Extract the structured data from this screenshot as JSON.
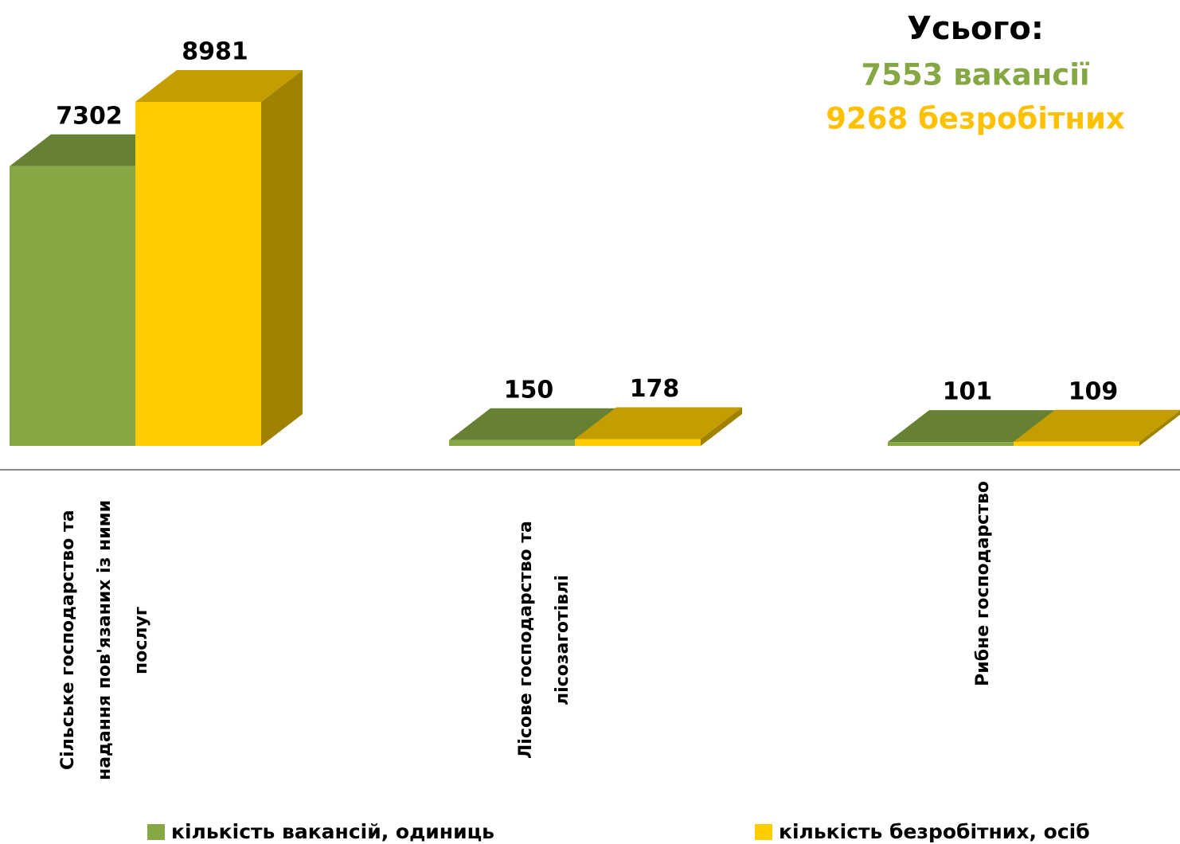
{
  "chart_data": {
    "type": "bar3d",
    "categories": [
      "Сільське господарство та надання пов'язаних із ними послуг",
      "Лісове господарство та лісозаготівлі",
      "Рибне господарство"
    ],
    "series": [
      {
        "name": "кількість вакансій, одиниць",
        "color": "#86a844",
        "values": [
          7302,
          150,
          101
        ]
      },
      {
        "name": "кількість безробітних, осіб",
        "color": "#ffcc00",
        "values": [
          8981,
          178,
          109
        ]
      }
    ],
    "annotations": [
      "Усього:",
      "7553 вакансії",
      "9268 безробітних"
    ]
  }
}
